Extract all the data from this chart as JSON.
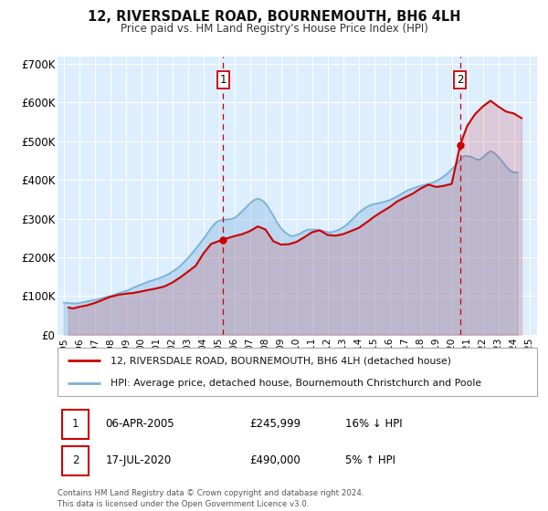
{
  "title": "12, RIVERSDALE ROAD, BOURNEMOUTH, BH6 4LH",
  "subtitle": "Price paid vs. HM Land Registry's House Price Index (HPI)",
  "background_color": "#ffffff",
  "plot_bg_color": "#ddeeff",
  "grid_color": "#ffffff",
  "legend_label_red": "12, RIVERSDALE ROAD, BOURNEMOUTH, BH6 4LH (detached house)",
  "legend_label_blue": "HPI: Average price, detached house, Bournemouth Christchurch and Poole",
  "transaction1": {
    "label": "1",
    "date": "06-APR-2005",
    "price": "£245,999",
    "hpi": "16% ↓ HPI",
    "x_year": 2005.27
  },
  "transaction2": {
    "label": "2",
    "date": "17-JUL-2020",
    "price": "£490,000",
    "hpi": "5% ↑ HPI",
    "x_year": 2020.54
  },
  "footer": "Contains HM Land Registry data © Crown copyright and database right 2024.\nThis data is licensed under the Open Government Licence v3.0.",
  "ylim": [
    0,
    720000
  ],
  "xlim_start": 1994.6,
  "xlim_end": 2025.5,
  "yticks": [
    0,
    100000,
    200000,
    300000,
    400000,
    500000,
    600000,
    700000
  ],
  "ytick_labels": [
    "£0",
    "£100K",
    "£200K",
    "£300K",
    "£400K",
    "£500K",
    "£600K",
    "£700K"
  ],
  "xticks": [
    1995,
    1996,
    1997,
    1998,
    1999,
    2000,
    2001,
    2002,
    2003,
    2004,
    2005,
    2006,
    2007,
    2008,
    2009,
    2010,
    2011,
    2012,
    2013,
    2014,
    2015,
    2016,
    2017,
    2018,
    2019,
    2020,
    2021,
    2022,
    2023,
    2024,
    2025
  ],
  "red_line_color": "#cc0000",
  "blue_line_color": "#7ab0d8",
  "marker_color": "#cc0000",
  "vline_color": "#cc0000",
  "hpi_data": {
    "years": [
      1995,
      1995.25,
      1995.5,
      1995.75,
      1996,
      1996.25,
      1996.5,
      1996.75,
      1997,
      1997.25,
      1997.5,
      1997.75,
      1998,
      1998.25,
      1998.5,
      1998.75,
      1999,
      1999.25,
      1999.5,
      1999.75,
      2000,
      2000.25,
      2000.5,
      2000.75,
      2001,
      2001.25,
      2001.5,
      2001.75,
      2002,
      2002.25,
      2002.5,
      2002.75,
      2003,
      2003.25,
      2003.5,
      2003.75,
      2004,
      2004.25,
      2004.5,
      2004.75,
      2005,
      2005.25,
      2005.5,
      2005.75,
      2006,
      2006.25,
      2006.5,
      2006.75,
      2007,
      2007.25,
      2007.5,
      2007.75,
      2008,
      2008.25,
      2008.5,
      2008.75,
      2009,
      2009.25,
      2009.5,
      2009.75,
      2010,
      2010.25,
      2010.5,
      2010.75,
      2011,
      2011.25,
      2011.5,
      2011.75,
      2012,
      2012.25,
      2012.5,
      2012.75,
      2013,
      2013.25,
      2013.5,
      2013.75,
      2014,
      2014.25,
      2014.5,
      2014.75,
      2015,
      2015.25,
      2015.5,
      2015.75,
      2016,
      2016.25,
      2016.5,
      2016.75,
      2017,
      2017.25,
      2017.5,
      2017.75,
      2018,
      2018.25,
      2018.5,
      2018.75,
      2019,
      2019.25,
      2019.5,
      2019.75,
      2020,
      2020.25,
      2020.5,
      2020.75,
      2021,
      2021.25,
      2021.5,
      2021.75,
      2022,
      2022.25,
      2022.5,
      2022.75,
      2023,
      2023.25,
      2023.5,
      2023.75,
      2024,
      2024.25
    ],
    "values": [
      83000,
      82000,
      81500,
      81000,
      82000,
      84000,
      86000,
      88000,
      90000,
      92000,
      95000,
      98000,
      100000,
      103000,
      107000,
      110000,
      113000,
      117000,
      122000,
      126000,
      130000,
      134000,
      138000,
      141000,
      144000,
      148000,
      152000,
      157000,
      163000,
      170000,
      178000,
      188000,
      198000,
      210000,
      222000,
      235000,
      248000,
      262000,
      276000,
      288000,
      295000,
      297000,
      298000,
      299000,
      302000,
      310000,
      320000,
      330000,
      340000,
      348000,
      352000,
      348000,
      340000,
      325000,
      308000,
      290000,
      275000,
      265000,
      258000,
      255000,
      258000,
      262000,
      268000,
      272000,
      272000,
      272000,
      270000,
      268000,
      265000,
      265000,
      268000,
      272000,
      278000,
      285000,
      295000,
      305000,
      315000,
      323000,
      330000,
      335000,
      338000,
      340000,
      342000,
      345000,
      348000,
      353000,
      358000,
      364000,
      370000,
      375000,
      378000,
      382000,
      385000,
      388000,
      390000,
      393000,
      397000,
      403000,
      410000,
      418000,
      428000,
      438000,
      450000,
      462000,
      462000,
      460000,
      455000,
      452000,
      458000,
      468000,
      475000,
      470000,
      460000,
      448000,
      435000,
      425000,
      420000,
      420000
    ]
  },
  "property_data": {
    "years": [
      1995.3,
      1995.6,
      1996.0,
      1996.5,
      1997.0,
      1997.5,
      1998.0,
      1998.5,
      1999.0,
      1999.5,
      2000.0,
      2000.5,
      2001.0,
      2001.5,
      2002.0,
      2002.5,
      2003.0,
      2003.5,
      2004.0,
      2004.5,
      2005.27,
      2006.0,
      2006.5,
      2007.0,
      2007.5,
      2008.0,
      2008.5,
      2009.0,
      2009.5,
      2010.0,
      2010.5,
      2011.0,
      2011.5,
      2012.0,
      2012.5,
      2013.0,
      2013.5,
      2014.0,
      2014.5,
      2015.0,
      2015.5,
      2016.0,
      2016.5,
      2017.0,
      2017.5,
      2018.0,
      2018.5,
      2019.0,
      2019.5,
      2020.0,
      2020.54,
      2021.0,
      2021.5,
      2022.0,
      2022.5,
      2023.0,
      2023.2,
      2023.5,
      2024.0,
      2024.5
    ],
    "values": [
      70000,
      68000,
      72000,
      76000,
      82000,
      90000,
      98000,
      103000,
      106000,
      108000,
      112000,
      116000,
      120000,
      125000,
      135000,
      148000,
      163000,
      178000,
      210000,
      235000,
      245999,
      255000,
      260000,
      268000,
      280000,
      272000,
      242000,
      233000,
      234000,
      240000,
      252000,
      265000,
      270000,
      258000,
      256000,
      260000,
      268000,
      276000,
      290000,
      305000,
      318000,
      330000,
      345000,
      355000,
      365000,
      378000,
      388000,
      382000,
      385000,
      390000,
      490000,
      540000,
      570000,
      590000,
      605000,
      590000,
      585000,
      577000,
      572000,
      560000
    ]
  }
}
